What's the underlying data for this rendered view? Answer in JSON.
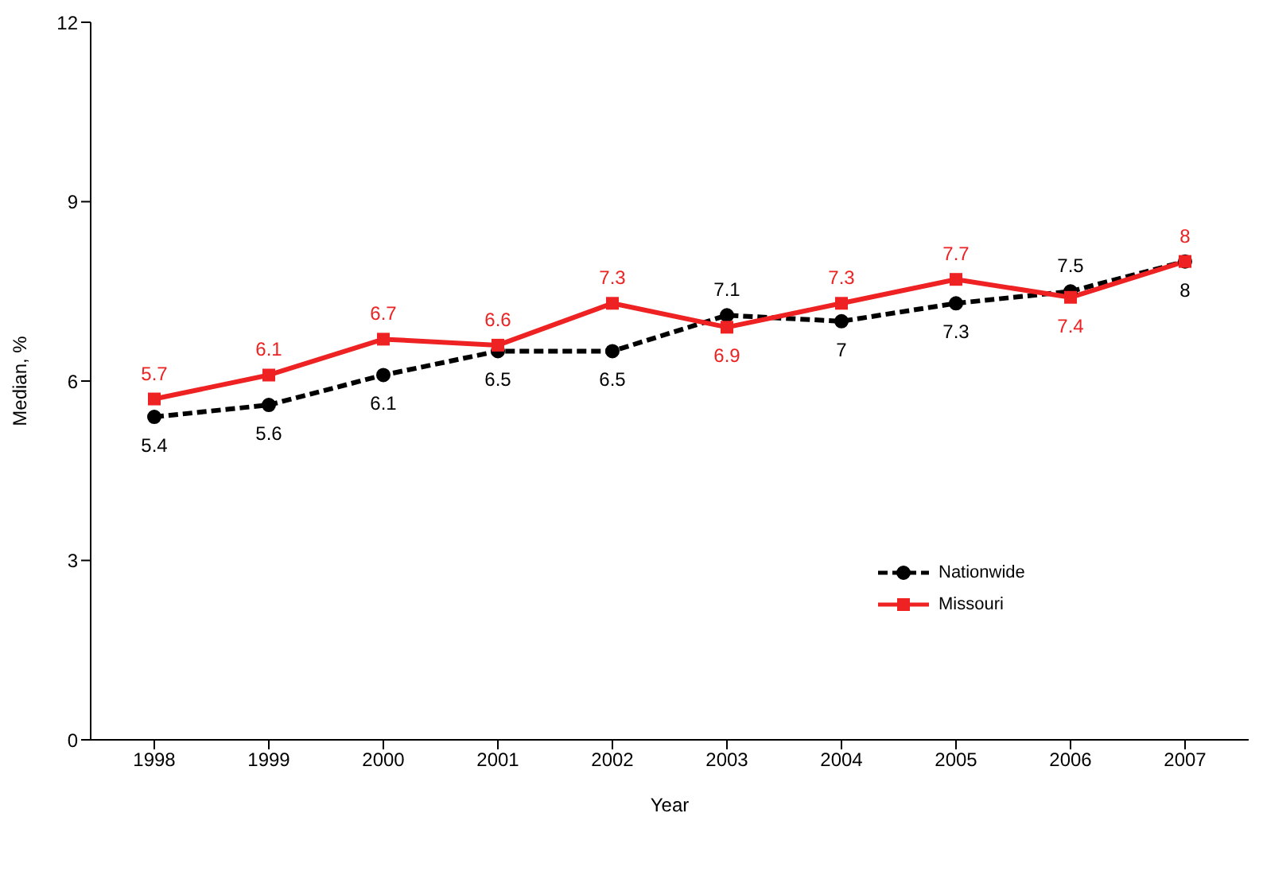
{
  "chart_data": {
    "type": "line",
    "xlabel": "Year",
    "ylabel": "Median, %",
    "categories": [
      "1998",
      "1999",
      "2000",
      "2001",
      "2002",
      "2003",
      "2004",
      "2005",
      "2006",
      "2007"
    ],
    "series": [
      {
        "name": "Nationwide",
        "color": "#000000",
        "marker": "circle",
        "line_style": "dashed",
        "values": [
          5.4,
          5.6,
          6.1,
          6.5,
          6.5,
          7.1,
          7,
          7.3,
          7.5,
          8
        ]
      },
      {
        "name": "Missouri",
        "color": "#ee2222",
        "marker": "square",
        "line_style": "solid",
        "values": [
          5.7,
          6.1,
          6.7,
          6.6,
          7.3,
          6.9,
          7.3,
          7.7,
          7.4,
          8
        ]
      }
    ],
    "ylim": [
      0,
      12
    ],
    "yticks": [
      0,
      3,
      6,
      9,
      12
    ],
    "grid": false,
    "legend": "right",
    "data_labels": true
  }
}
